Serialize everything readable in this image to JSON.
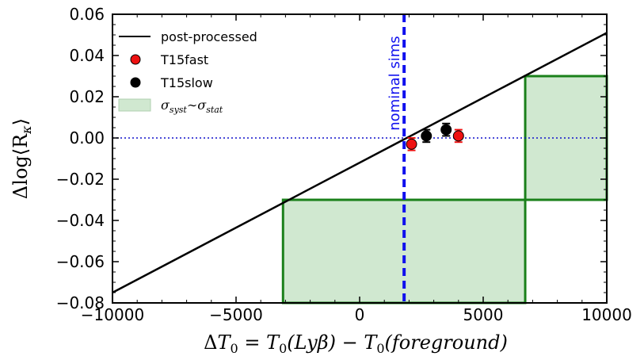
{
  "chart_data": {
    "type": "scatter",
    "xlabel": "ΔT0 = T0(Lyβ) − T0(foreground)",
    "xlabel_parts": {
      "prefix": "Δ",
      "t0a": "T",
      "sub0a": "0",
      "eq": " = ",
      "t0b": "T",
      "sub0b": "0",
      "arg1": "(Lyβ) − ",
      "t0c": "T",
      "sub0c": "0",
      "arg2": "(foreground)"
    },
    "ylabel": "Δlog⟨Rκ⟩",
    "ylabel_parts": {
      "main": "Δlog⟨R",
      "sub": "κ",
      "close": "⟩"
    },
    "xlim": [
      -10000,
      10000
    ],
    "ylim": [
      -0.08,
      0.06
    ],
    "xticks": [
      -10000,
      -5000,
      0,
      5000,
      10000
    ],
    "xtick_labels": [
      "−10000",
      "−5000",
      "0",
      "5000",
      "10000"
    ],
    "yticks": [
      -0.08,
      -0.06,
      -0.04,
      -0.02,
      0.0,
      0.02,
      0.04,
      0.06
    ],
    "ytick_labels": [
      "−0.08",
      "−0.06",
      "−0.04",
      "−0.02",
      "0.00",
      "0.02",
      "0.04",
      "0.06"
    ],
    "line": {
      "name": "post-processed",
      "x": [
        -10000,
        10000
      ],
      "y": [
        -0.075,
        0.051
      ],
      "color": "#000000"
    },
    "series": [
      {
        "name": "T15fast",
        "color": "#ee1111",
        "x": [
          2100,
          4000
        ],
        "y": [
          -0.003,
          0.001
        ],
        "err": [
          0.003,
          0.003
        ]
      },
      {
        "name": "T15slow",
        "color": "#000000",
        "x": [
          2700,
          3500
        ],
        "y": [
          0.001,
          0.004
        ],
        "err": [
          0.003,
          0.003
        ]
      }
    ],
    "shaded_regions": [
      {
        "name": "σsyst ~ σstat",
        "x": [
          -3100,
          6700
        ],
        "y": [
          -0.08,
          -0.03
        ]
      },
      {
        "name": "σsyst ~ σstat",
        "x": [
          6700,
          10000
        ],
        "y": [
          -0.03,
          0.03
        ]
      }
    ],
    "band_color": "#d0e8d0",
    "band_edge_color": "#1a801a",
    "vline": {
      "x": 1800,
      "label": "nominal sims",
      "color": "#1010ee"
    },
    "hline": {
      "y": 0.0,
      "color": "#1010cc"
    },
    "legend": {
      "position": "top-left",
      "entries": [
        "post-processed",
        "T15fast",
        "T15slow",
        "σsyst ~ σstat"
      ],
      "shade_label_parts": {
        "s1": "σ",
        "sub1": "syst",
        "tilde": "∼",
        "s2": "σ",
        "sub2": "stat"
      }
    }
  }
}
